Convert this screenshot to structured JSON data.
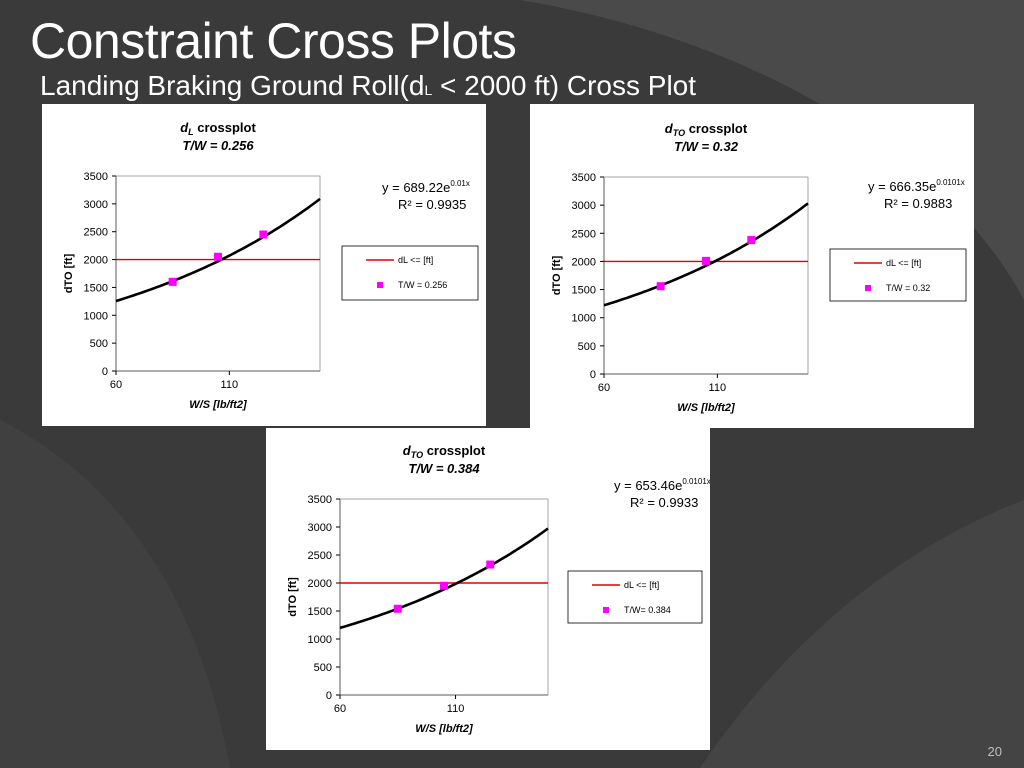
{
  "slide": {
    "title": "Constraint Cross Plots",
    "subtitle_main": "Landing Braking Ground Roll(d",
    "subtitle_sub": "L",
    "subtitle_rest": " < 2000 ft) Cross Plot",
    "page_number": "20"
  },
  "colors": {
    "background": "#3a3a3a",
    "curve": "#000000",
    "limit_line": "#e00000",
    "points": "#ff00ff"
  },
  "chart_data": [
    {
      "type": "scatter",
      "title_var": "d",
      "title_sub": "L",
      "title_rest": " crossplot",
      "subtitle": "T/W = 0.256",
      "ylabel": "dTO [ft]",
      "xlabel": "W/S [lb/ft2]",
      "xlim": [
        60,
        150
      ],
      "ylim": [
        0,
        3500
      ],
      "xticks": [
        "60",
        "110"
      ],
      "yticks": [
        "0",
        "500",
        "1000",
        "1500",
        "2000",
        "2500",
        "3000",
        "3500"
      ],
      "trendline": {
        "a": 689.22,
        "b": 0.01,
        "label": "y = 689.22e",
        "exp_label": "0.01x",
        "r2": "R² = 0.9935"
      },
      "limit_line": {
        "y": 2000,
        "label": "dL <=  [ft]"
      },
      "series": [
        {
          "name": "T/W = 0.256",
          "points": [
            {
              "x": 85,
              "y": 1600
            },
            {
              "x": 105,
              "y": 2050
            },
            {
              "x": 125,
              "y": 2450
            }
          ]
        }
      ],
      "grid": false,
      "legend_position": "right"
    },
    {
      "type": "scatter",
      "title_var": "d",
      "title_sub": "TO",
      "title_rest": " crossplot",
      "subtitle": "T/W = 0.32",
      "ylabel": "dTO [ft]",
      "xlabel": "W/S [lb/ft2]",
      "xlim": [
        60,
        150
      ],
      "ylim": [
        0,
        3500
      ],
      "xticks": [
        "60",
        "110"
      ],
      "yticks": [
        "0",
        "500",
        "1000",
        "1500",
        "2000",
        "2500",
        "3000",
        "3500"
      ],
      "trendline": {
        "a": 666.35,
        "b": 0.0101,
        "label": "y = 666.35e",
        "exp_label": "0.0101x",
        "r2": "R² = 0.9883"
      },
      "limit_line": {
        "y": 2000,
        "label": "dL <=  [ft]"
      },
      "series": [
        {
          "name": "T/W = 0.32",
          "points": [
            {
              "x": 85,
              "y": 1560
            },
            {
              "x": 105,
              "y": 2010
            },
            {
              "x": 125,
              "y": 2380
            }
          ]
        }
      ],
      "grid": false,
      "legend_position": "right"
    },
    {
      "type": "scatter",
      "title_var": "d",
      "title_sub": "TO",
      "title_rest": " crossplot",
      "subtitle": "T/W = 0.384",
      "ylabel": "dTO [ft]",
      "xlabel": "W/S [lb/ft2]",
      "xlim": [
        60,
        150
      ],
      "ylim": [
        0,
        3500
      ],
      "xticks": [
        "60",
        "110"
      ],
      "yticks": [
        "0",
        "500",
        "1000",
        "1500",
        "2000",
        "2500",
        "3000",
        "3500"
      ],
      "trendline": {
        "a": 653.46,
        "b": 0.0101,
        "label": "y = 653.46e",
        "exp_label": "0.0101x",
        "r2": "R² = 0.9933"
      },
      "limit_line": {
        "y": 2000,
        "label": "dL <=  [ft]"
      },
      "series": [
        {
          "name": "T/W= 0.384",
          "points": [
            {
              "x": 85,
              "y": 1540
            },
            {
              "x": 105,
              "y": 1950
            },
            {
              "x": 125,
              "y": 2330
            }
          ]
        }
      ],
      "grid": false,
      "legend_position": "right"
    }
  ]
}
